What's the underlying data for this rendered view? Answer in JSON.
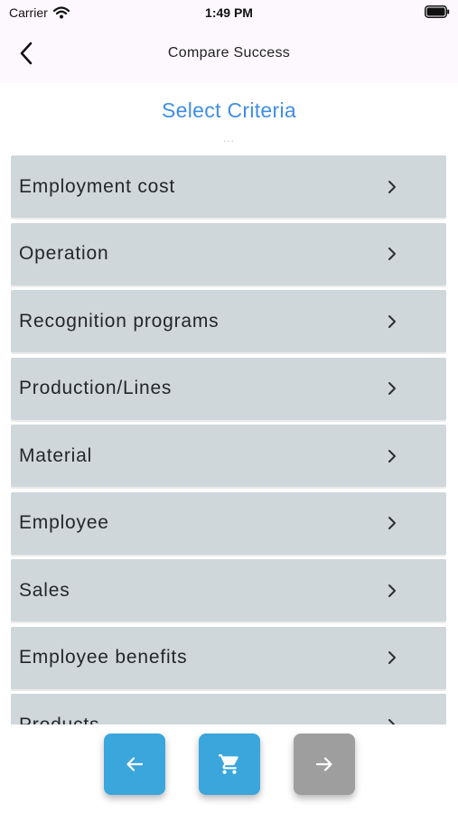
{
  "status_bar": {
    "carrier": "Carrier",
    "time": "1:49 PM",
    "icons": [
      "wifi-icon",
      "battery-icon"
    ]
  },
  "nav": {
    "title": "Compare Success",
    "back_icon": "chevron-left-icon"
  },
  "section": {
    "title": "Select Criteria",
    "more": "..."
  },
  "criteria": {
    "items": [
      {
        "label": "Employment cost"
      },
      {
        "label": "Operation"
      },
      {
        "label": "Recognition programs"
      },
      {
        "label": "Production/Lines"
      },
      {
        "label": "Material"
      },
      {
        "label": "Employee"
      },
      {
        "label": "Sales"
      },
      {
        "label": "Employee benefits"
      },
      {
        "label": "Products"
      }
    ],
    "item_color": "#d0d7da"
  },
  "actions": {
    "prev_icon": "arrow-left-icon",
    "cart_icon": "cart-icon",
    "next_icon": "arrow-right-icon",
    "active_color": "#3aa6dc",
    "disabled_color": "#9e9e9e"
  }
}
